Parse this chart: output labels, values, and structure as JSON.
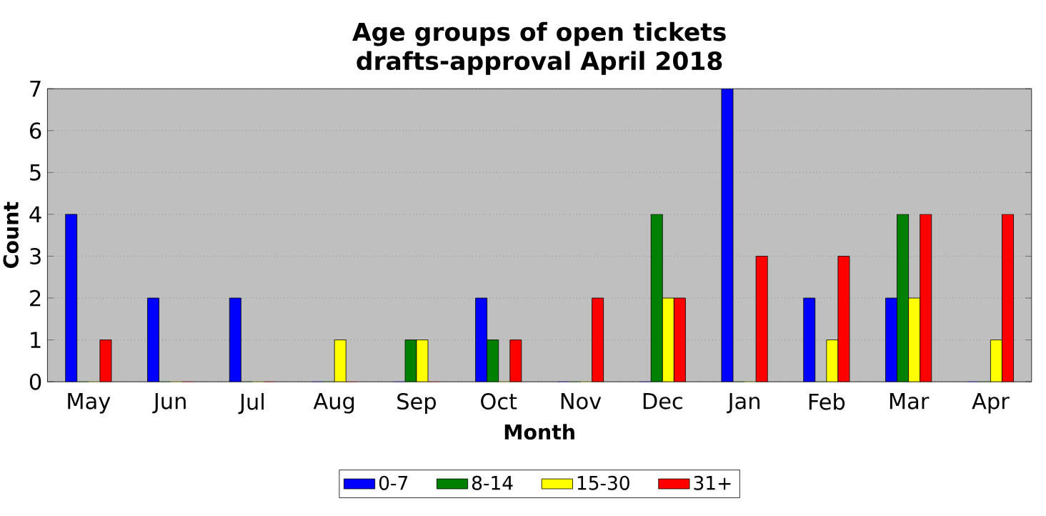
{
  "chart_data": {
    "type": "bar",
    "title": "Age groups of open tickets",
    "subtitle": "drafts-approval April 2018",
    "xlabel": "Month",
    "ylabel": "Count",
    "categories": [
      "May",
      "Jun",
      "Jul",
      "Aug",
      "Sep",
      "Oct",
      "Nov",
      "Dec",
      "Jan",
      "Feb",
      "Mar",
      "Apr"
    ],
    "series": [
      {
        "name": "0-7",
        "color": "#0000ff",
        "values": [
          4,
          2,
          2,
          0,
          0,
          2,
          0,
          0,
          7,
          2,
          2,
          0
        ]
      },
      {
        "name": "8-14",
        "color": "#008000",
        "values": [
          0,
          0,
          0,
          0,
          1,
          1,
          0,
          4,
          0,
          0,
          4,
          0
        ]
      },
      {
        "name": "15-30",
        "color": "#ffff00",
        "values": [
          0,
          0,
          0,
          1,
          1,
          0,
          0,
          2,
          0,
          1,
          2,
          1
        ]
      },
      {
        "name": "31+",
        "color": "#ff0000",
        "values": [
          1,
          0,
          0,
          0,
          0,
          1,
          2,
          2,
          3,
          3,
          4,
          4
        ]
      }
    ],
    "ylim": [
      0,
      7
    ],
    "yticks": [
      0,
      1,
      2,
      3,
      4,
      5,
      6,
      7
    ],
    "grid": "y",
    "legend": "bottom"
  }
}
